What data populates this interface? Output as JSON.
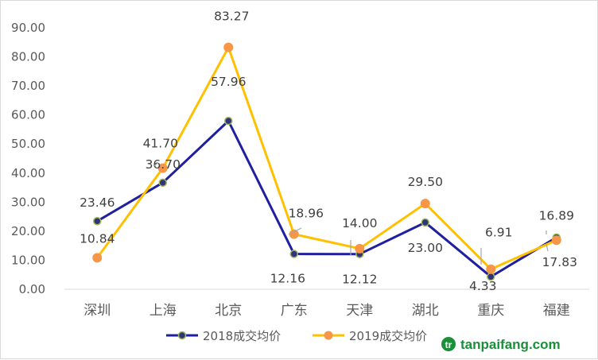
{
  "chart_data": {
    "type": "line",
    "categories": [
      "深圳",
      "上海",
      "北京",
      "广东",
      "天津",
      "湖北",
      "重庆",
      "福建"
    ],
    "ylim": [
      0,
      90
    ],
    "yticks": [
      "0.00",
      "10.00",
      "20.00",
      "30.00",
      "40.00",
      "50.00",
      "60.00",
      "70.00",
      "80.00",
      "90.00"
    ],
    "grid": false,
    "legend_position": "bottom",
    "series": [
      {
        "name": "2018成交均价",
        "color": "#1f1fa0",
        "marker_fill": "#3a3a00",
        "values": [
          23.46,
          36.7,
          57.96,
          12.16,
          12.12,
          23.0,
          4.33,
          17.83
        ],
        "labels": [
          "23.46",
          "36.70",
          "57.96",
          "12.16",
          "12.12",
          "23.00",
          "4.33",
          "17.83"
        ]
      },
      {
        "name": "2019成交均价",
        "color": "#ffc000",
        "marker_fill": "#f79646",
        "values": [
          10.84,
          41.7,
          83.27,
          18.96,
          14.0,
          29.5,
          6.91,
          16.89
        ],
        "labels": [
          "10.84",
          "41.70",
          "83.27",
          "18.96",
          "14.00",
          "29.50",
          "6.91",
          "16.89"
        ]
      }
    ]
  },
  "watermark": {
    "text": "tanpaifang.com",
    "color": "#1a8f3a"
  }
}
